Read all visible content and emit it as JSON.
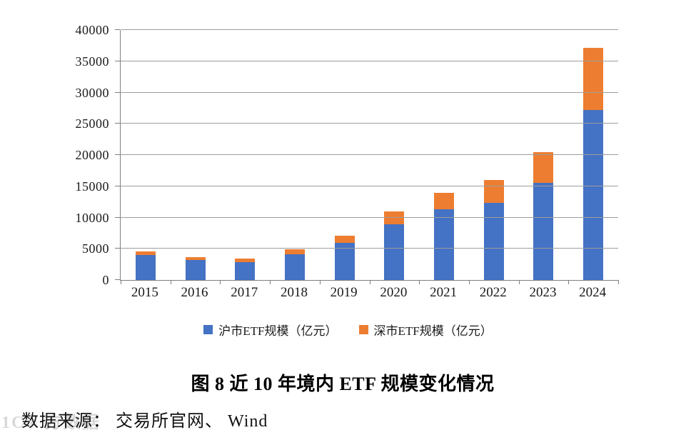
{
  "page": {
    "title": "图 8  近 10 年境内 ETF 规模变化情况",
    "source": "数据来源：  交易所官网、 Wind",
    "watermark": "1C∞ 方数据"
  },
  "chart_data": {
    "type": "bar",
    "stacked": true,
    "title": "图 8 近 10 年境内 ETF 规模变化情况",
    "xlabel": "",
    "ylabel": "",
    "categories": [
      "2015",
      "2016",
      "2017",
      "2018",
      "2019",
      "2020",
      "2021",
      "2022",
      "2023",
      "2024"
    ],
    "series": [
      {
        "name": "沪市ETF规模（亿元）",
        "color": "#4472C4",
        "values": [
          3950,
          3150,
          2900,
          4100,
          6000,
          8900,
          11300,
          12400,
          15500,
          27200
        ]
      },
      {
        "name": "深市ETF规模（亿元）",
        "color": "#ED7D31",
        "values": [
          600,
          550,
          500,
          800,
          1100,
          2100,
          2700,
          3550,
          5000,
          10000
        ]
      }
    ],
    "ylim": [
      0,
      40000
    ],
    "ytick_step": 5000,
    "yticks": [
      "0",
      "5000",
      "10000",
      "15000",
      "20000",
      "25000",
      "30000",
      "35000",
      "40000"
    ],
    "grid": true,
    "gridline_color": "#9d9d9d",
    "axis_color": "#7f7f7f",
    "legend_position": "bottom"
  }
}
